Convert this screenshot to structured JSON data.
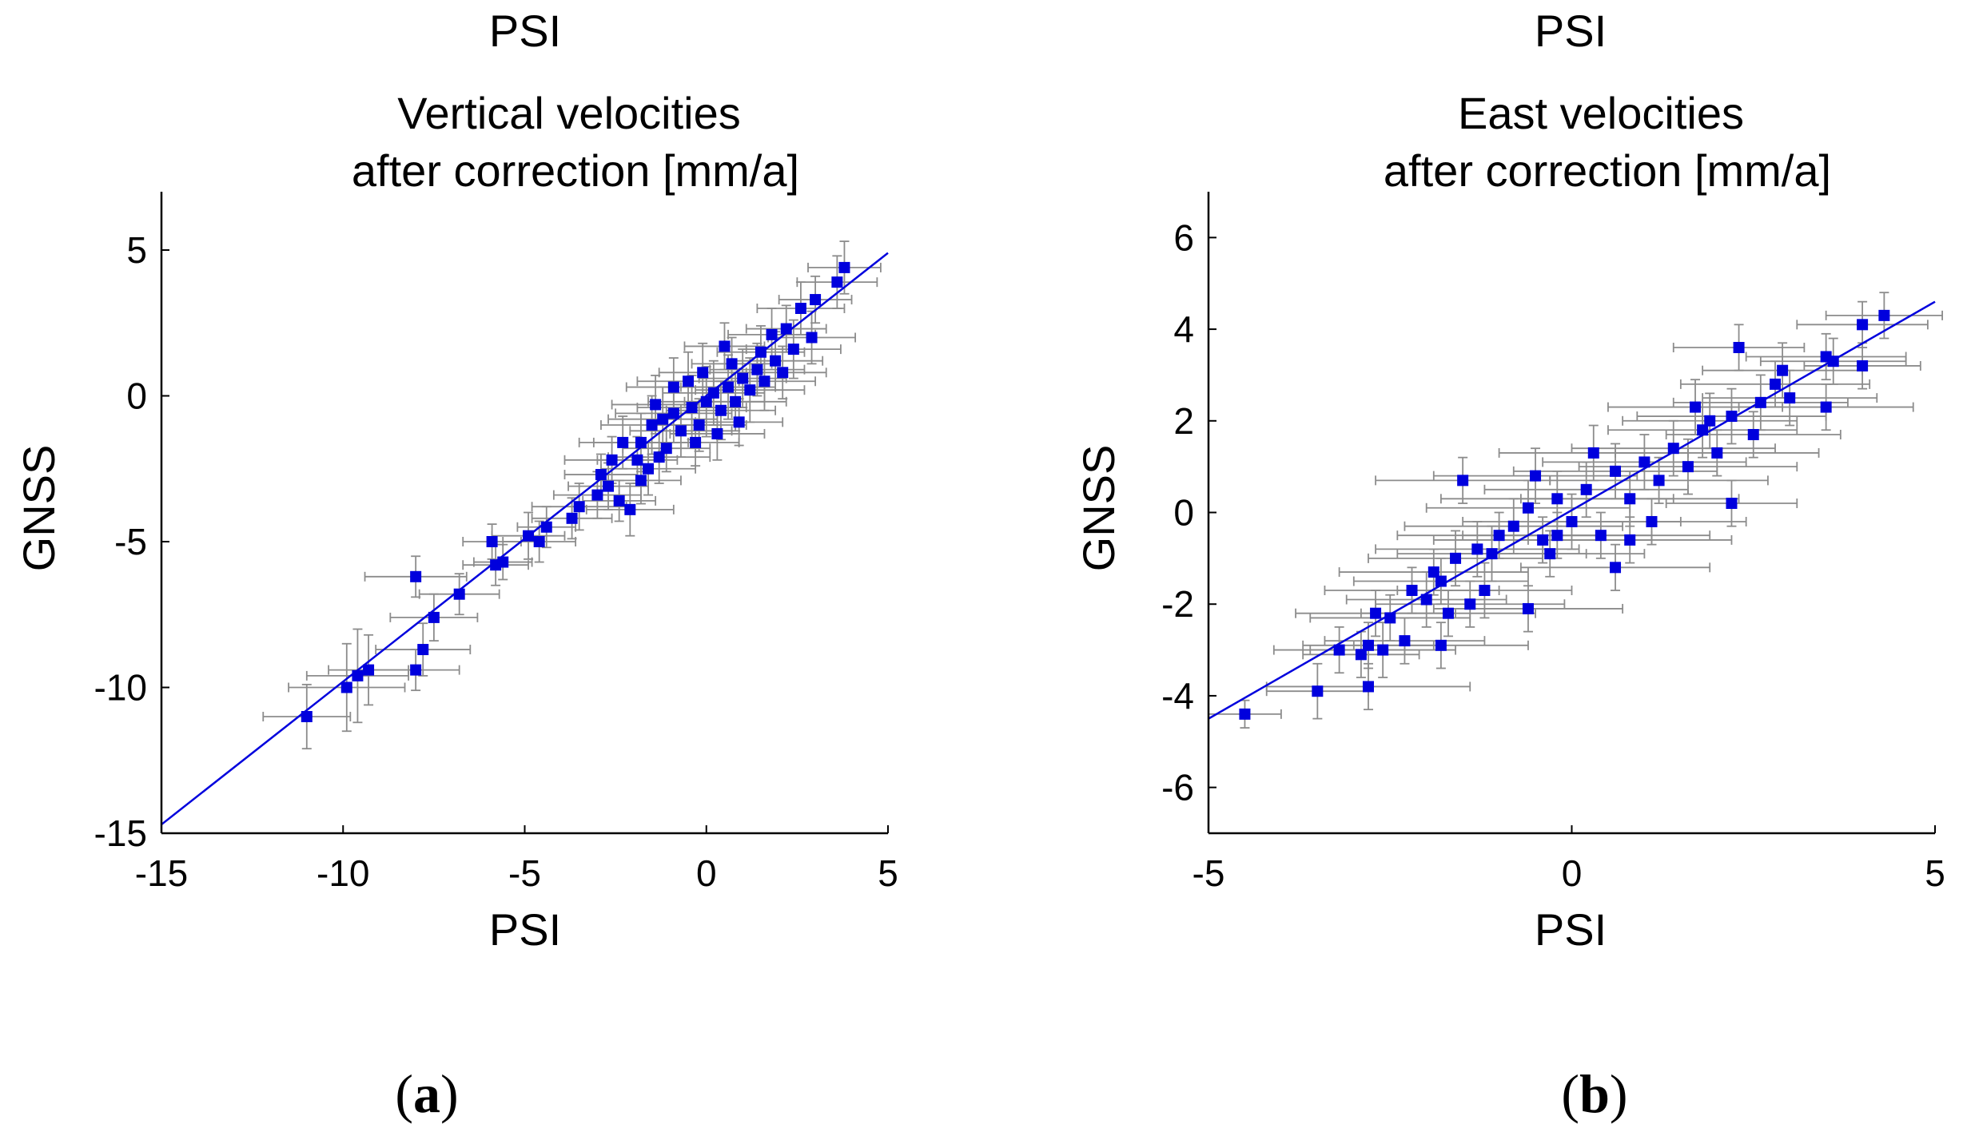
{
  "colors": {
    "point": "#0000dd",
    "fit_line": "#0000dd",
    "error_bar": "#8c8c8c",
    "axis": "#000000"
  },
  "chart_data": [
    {
      "type": "scatter",
      "panel_label": "(a)",
      "panel_letter": "a",
      "header": "PSI",
      "title_line1": "Vertical velocities",
      "title_line2": "after correction [mm/a]",
      "xlabel": "PSI",
      "ylabel": "GNSS",
      "xlim": [
        -15,
        5
      ],
      "ylim": [
        -15,
        7
      ],
      "xticks": [
        -15,
        -10,
        -5,
        0,
        5
      ],
      "xtick_labels": [
        "-15",
        "-10",
        "-5",
        "0",
        "5"
      ],
      "yticks": [
        -15,
        -10,
        -5,
        0,
        5
      ],
      "ytick_labels": [
        "-15",
        "-10",
        "-5",
        "0",
        "5"
      ],
      "fit_line": [
        [
          -15,
          -14.7
        ],
        [
          5,
          4.9
        ]
      ],
      "points": [
        [
          -11.0,
          -11.0,
          1.2,
          1.1
        ],
        [
          -9.9,
          -10.0,
          1.6,
          1.5
        ],
        [
          -9.6,
          -9.6,
          1.4,
          1.6
        ],
        [
          -9.3,
          -9.4,
          1.1,
          1.2
        ],
        [
          -8.0,
          -9.4,
          1.2,
          0.7
        ],
        [
          -7.8,
          -8.7,
          1.3,
          0.9
        ],
        [
          -8.0,
          -6.2,
          1.4,
          0.7
        ],
        [
          -7.5,
          -7.6,
          1.2,
          0.8
        ],
        [
          -6.8,
          -6.8,
          1.1,
          0.7
        ],
        [
          -5.8,
          -5.8,
          0.9,
          0.7
        ],
        [
          -5.6,
          -5.7,
          0.8,
          0.6
        ],
        [
          -5.9,
          -5.0,
          0.8,
          0.6
        ],
        [
          -4.9,
          -4.8,
          1.0,
          0.8
        ],
        [
          -4.6,
          -5.0,
          1.0,
          0.7
        ],
        [
          -4.4,
          -4.5,
          0.8,
          0.7
        ],
        [
          -3.7,
          -4.2,
          1.1,
          0.7
        ],
        [
          -3.5,
          -3.8,
          1.3,
          0.8
        ],
        [
          -3.0,
          -3.4,
          1.2,
          0.8
        ],
        [
          -2.4,
          -3.6,
          1.0,
          0.7
        ],
        [
          -2.1,
          -3.9,
          1.2,
          0.9
        ],
        [
          -1.8,
          -2.9,
          1.1,
          0.8
        ],
        [
          -1.6,
          -2.5,
          1.3,
          0.9
        ],
        [
          -1.3,
          -2.1,
          1.4,
          0.9
        ],
        [
          -1.1,
          -1.8,
          1.2,
          0.8
        ],
        [
          -1.8,
          -1.6,
          1.3,
          1.0
        ],
        [
          -1.5,
          -1.0,
          1.4,
          1.0
        ],
        [
          -1.2,
          -0.8,
          1.5,
          1.1
        ],
        [
          -0.9,
          -0.6,
          1.6,
          1.0
        ],
        [
          -0.7,
          -1.2,
          1.4,
          0.9
        ],
        [
          -0.4,
          -0.4,
          1.5,
          1.1
        ],
        [
          -0.2,
          -1.0,
          1.3,
          0.9
        ],
        [
          0.0,
          -0.2,
          1.6,
          1.2
        ],
        [
          0.2,
          0.1,
          1.4,
          1.1
        ],
        [
          0.4,
          -0.5,
          1.5,
          1.0
        ],
        [
          0.6,
          0.3,
          1.3,
          1.1
        ],
        [
          0.8,
          -0.2,
          1.4,
          1.0
        ],
        [
          1.0,
          0.6,
          1.2,
          1.0
        ],
        [
          1.2,
          0.2,
          1.5,
          1.1
        ],
        [
          1.4,
          0.9,
          1.3,
          0.9
        ],
        [
          1.6,
          0.5,
          1.4,
          1.0
        ],
        [
          1.9,
          1.2,
          1.3,
          1.0
        ],
        [
          2.1,
          0.8,
          1.2,
          0.9
        ],
        [
          2.4,
          1.6,
          1.3,
          1.0
        ],
        [
          2.2,
          2.3,
          1.1,
          0.8
        ],
        [
          2.6,
          3.0,
          1.2,
          0.9
        ],
        [
          3.0,
          3.3,
          1.0,
          0.8
        ],
        [
          3.6,
          3.9,
          1.1,
          0.9
        ],
        [
          3.8,
          4.4,
          1.0,
          0.9
        ],
        [
          -2.9,
          -2.7,
          1.0,
          0.7
        ],
        [
          -2.6,
          -2.2,
          1.3,
          0.8
        ],
        [
          -2.3,
          -1.6,
          1.2,
          0.9
        ],
        [
          -0.5,
          0.5,
          1.4,
          1.0
        ],
        [
          -0.9,
          0.3,
          1.3,
          1.0
        ],
        [
          -1.4,
          -0.3,
          1.2,
          1.0
        ],
        [
          0.3,
          -1.3,
          1.3,
          0.9
        ],
        [
          0.9,
          -0.9,
          1.2,
          0.8
        ],
        [
          1.5,
          1.5,
          1.2,
          0.9
        ],
        [
          0.7,
          1.1,
          1.1,
          0.9
        ],
        [
          -0.1,
          0.8,
          1.2,
          1.0
        ],
        [
          -0.3,
          -1.6,
          1.2,
          0.8
        ],
        [
          2.9,
          2.0,
          1.2,
          0.9
        ],
        [
          1.8,
          2.1,
          1.2,
          0.9
        ],
        [
          -1.9,
          -2.2,
          1.1,
          0.8
        ],
        [
          -2.7,
          -3.1,
          1.1,
          0.8
        ],
        [
          0.5,
          1.7,
          1.1,
          0.8
        ]
      ]
    },
    {
      "type": "scatter",
      "panel_label": "(b)",
      "panel_letter": "b",
      "header": "PSI",
      "title_line1": "East velocities",
      "title_line2": "after correction [mm/a]",
      "xlabel": "PSI",
      "ylabel": "GNSS",
      "xlim": [
        -5,
        5
      ],
      "ylim": [
        -7,
        7
      ],
      "xticks": [
        -5,
        0,
        5
      ],
      "xtick_labels": [
        "-5",
        "0",
        "5"
      ],
      "yticks": [
        -6,
        -4,
        -2,
        0,
        2,
        4,
        6
      ],
      "ytick_labels": [
        "-6",
        "-4",
        "-2",
        "0",
        "2",
        "4",
        "6"
      ],
      "fit_line": [
        [
          -5,
          -4.5
        ],
        [
          5,
          4.6
        ]
      ],
      "points": [
        [
          -4.5,
          -4.4,
          0.5,
          0.3
        ],
        [
          -3.5,
          -3.9,
          0.7,
          0.6
        ],
        [
          -2.8,
          -3.8,
          1.4,
          0.5
        ],
        [
          -3.2,
          -3.0,
          0.9,
          0.5
        ],
        [
          -2.9,
          -3.1,
          0.8,
          0.5
        ],
        [
          -2.6,
          -3.0,
          1.0,
          0.6
        ],
        [
          -2.8,
          -2.9,
          0.9,
          0.5
        ],
        [
          -2.3,
          -2.8,
          1.1,
          0.5
        ],
        [
          -1.8,
          -2.9,
          1.2,
          0.5
        ],
        [
          -2.5,
          -2.3,
          1.1,
          0.5
        ],
        [
          -2.2,
          -1.7,
          1.2,
          0.5
        ],
        [
          -2.0,
          -1.9,
          1.1,
          0.6
        ],
        [
          -1.7,
          -2.2,
          1.2,
          0.5
        ],
        [
          -1.4,
          -2.0,
          1.3,
          0.5
        ],
        [
          -1.2,
          -1.7,
          1.2,
          0.6
        ],
        [
          -0.6,
          -2.1,
          1.3,
          0.5
        ],
        [
          -1.9,
          -1.3,
          1.3,
          0.5
        ],
        [
          -1.6,
          -1.0,
          1.2,
          0.6
        ],
        [
          -1.3,
          -0.8,
          1.4,
          0.6
        ],
        [
          -1.0,
          -0.5,
          1.4,
          0.5
        ],
        [
          -0.8,
          -0.3,
          1.5,
          0.6
        ],
        [
          -0.6,
          0.1,
          1.4,
          0.6
        ],
        [
          -0.4,
          -0.6,
          1.5,
          0.5
        ],
        [
          -0.2,
          0.3,
          1.6,
          0.6
        ],
        [
          0.0,
          -0.2,
          1.5,
          0.6
        ],
        [
          0.2,
          0.5,
          1.4,
          0.6
        ],
        [
          0.4,
          -0.5,
          1.5,
          0.5
        ],
        [
          0.6,
          0.9,
          1.4,
          0.6
        ],
        [
          0.8,
          0.3,
          1.5,
          0.6
        ],
        [
          1.0,
          1.1,
          1.4,
          0.6
        ],
        [
          1.2,
          0.7,
          1.5,
          0.5
        ],
        [
          1.4,
          1.4,
          1.4,
          0.6
        ],
        [
          1.6,
          1.0,
          1.5,
          0.6
        ],
        [
          1.8,
          1.8,
          1.3,
          0.6
        ],
        [
          2.0,
          1.3,
          1.4,
          0.5
        ],
        [
          2.2,
          2.1,
          1.3,
          0.6
        ],
        [
          2.3,
          3.6,
          0.9,
          0.5
        ],
        [
          2.6,
          2.4,
          1.2,
          0.6
        ],
        [
          2.8,
          2.8,
          1.3,
          0.5
        ],
        [
          3.0,
          2.5,
          1.2,
          0.6
        ],
        [
          3.5,
          3.4,
          1.1,
          0.5
        ],
        [
          3.6,
          3.3,
          1.0,
          0.5
        ],
        [
          3.5,
          2.3,
          1.2,
          0.5
        ],
        [
          4.0,
          3.2,
          0.8,
          0.5
        ],
        [
          4.0,
          4.1,
          0.9,
          0.5
        ],
        [
          4.3,
          4.3,
          0.8,
          0.5
        ],
        [
          2.2,
          0.2,
          0.9,
          0.5
        ],
        [
          -0.2,
          -0.5,
          1.3,
          0.5
        ],
        [
          0.8,
          -0.6,
          1.4,
          0.5
        ],
        [
          -1.1,
          -0.9,
          1.3,
          0.6
        ],
        [
          0.3,
          1.3,
          1.3,
          0.6
        ],
        [
          1.7,
          2.3,
          1.2,
          0.6
        ],
        [
          -0.5,
          0.8,
          1.4,
          0.6
        ],
        [
          -1.5,
          0.7,
          1.2,
          0.5
        ],
        [
          2.9,
          3.1,
          1.1,
          0.6
        ],
        [
          1.1,
          -0.2,
          1.3,
          0.5
        ],
        [
          -2.7,
          -2.2,
          1.1,
          0.5
        ],
        [
          -1.8,
          -1.5,
          1.2,
          0.5
        ],
        [
          -0.3,
          -0.9,
          1.3,
          0.5
        ],
        [
          1.9,
          2.0,
          1.2,
          0.6
        ],
        [
          2.5,
          1.7,
          1.2,
          0.5
        ],
        [
          0.6,
          -1.2,
          1.3,
          0.5
        ]
      ]
    }
  ]
}
